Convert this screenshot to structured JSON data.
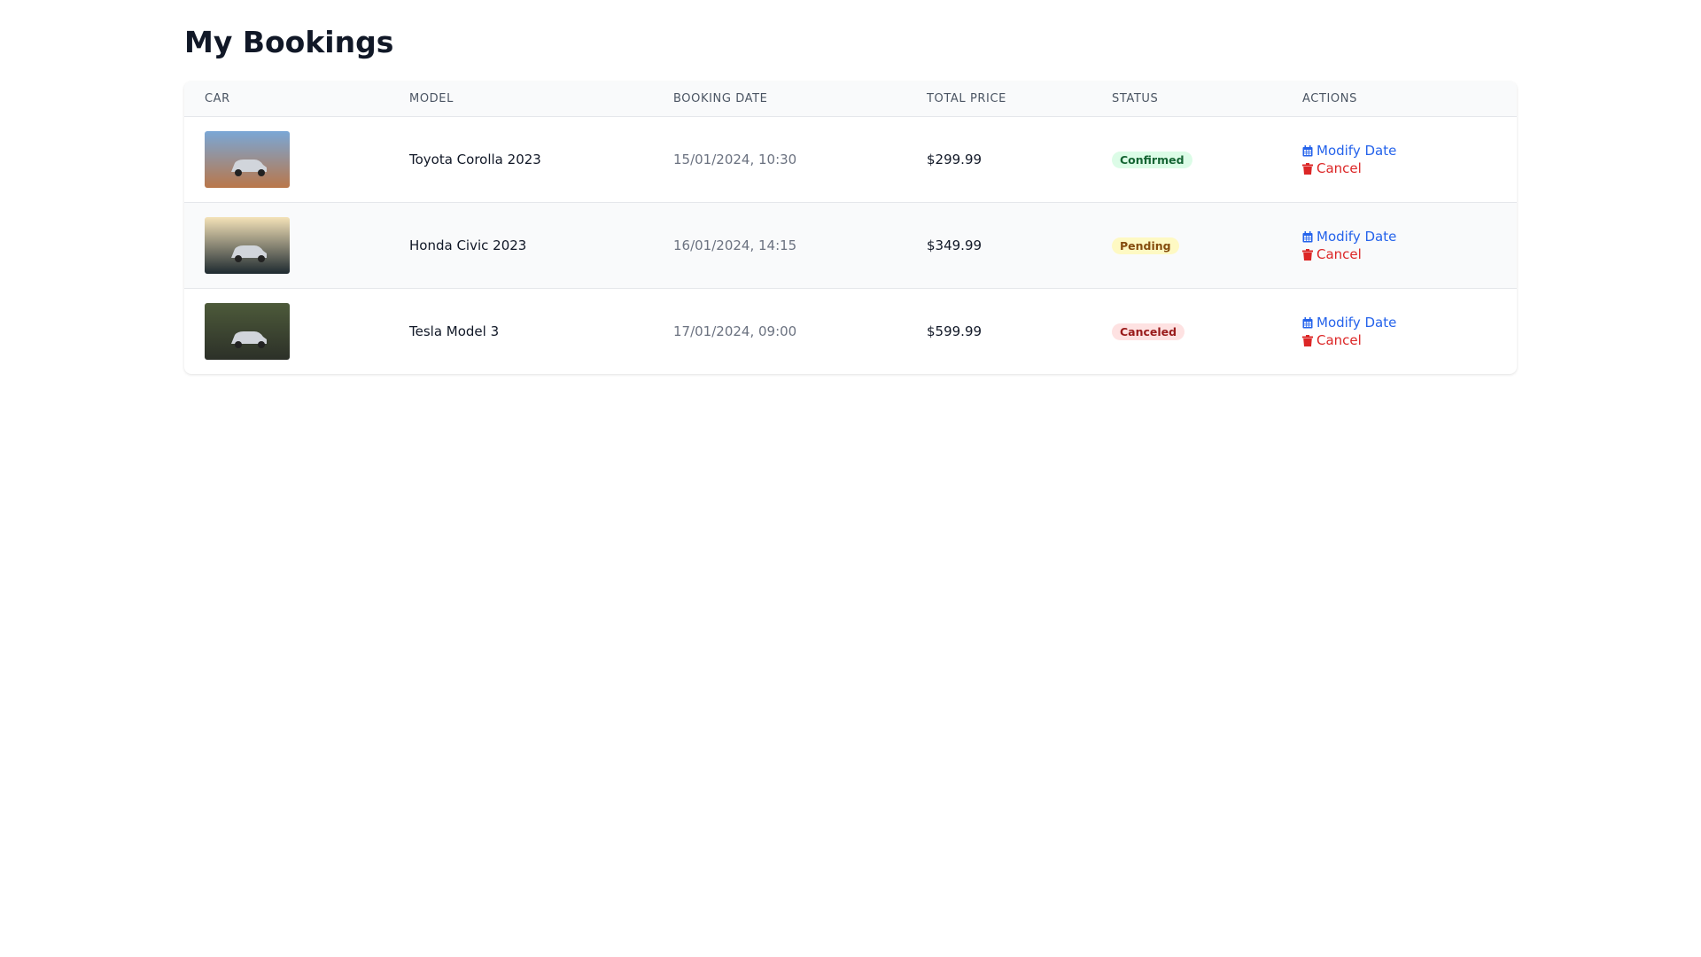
{
  "header": {
    "title": "My Bookings"
  },
  "table": {
    "columns": [
      "CAR",
      "MODEL",
      "BOOKING DATE",
      "TOTAL PRICE",
      "STATUS",
      "ACTIONS"
    ],
    "rows": [
      {
        "model": "Toyota Corolla 2023",
        "date": "15/01/2024, 10:30",
        "price": "$299.99",
        "status": "Confirmed",
        "modify": "Modify Date",
        "cancel": "Cancel"
      },
      {
        "model": "Honda Civic 2023",
        "date": "16/01/2024, 14:15",
        "price": "$349.99",
        "status": "Pending",
        "modify": "Modify Date",
        "cancel": "Cancel"
      },
      {
        "model": "Tesla Model 3",
        "date": "17/01/2024, 09:00",
        "price": "$599.99",
        "status": "Canceled",
        "modify": "Modify Date",
        "cancel": "Cancel"
      }
    ]
  }
}
